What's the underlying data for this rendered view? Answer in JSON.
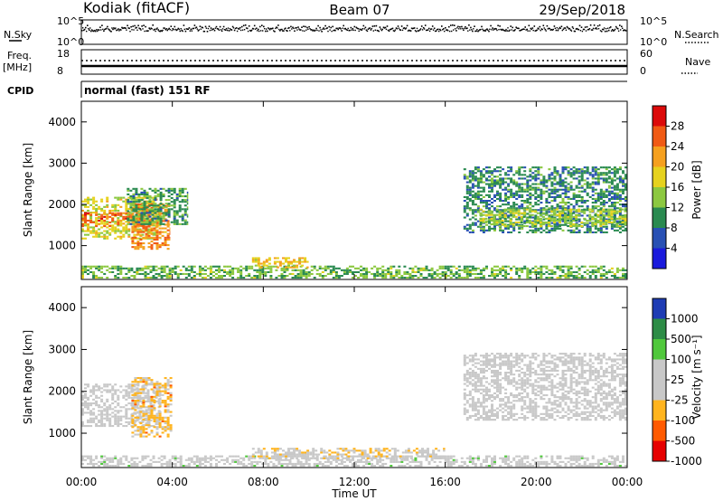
{
  "header": {
    "station": "Kodiak (fitACF)",
    "beam": "Beam 07",
    "date": "29/Sep/2018"
  },
  "top_panels": {
    "nsky": {
      "label": "N.Sky",
      "ticks": [
        "10^5",
        "10^0"
      ]
    },
    "nsearch": {
      "label": "N.Search",
      "ticks": [
        "10^5",
        "10^0"
      ]
    },
    "freq": {
      "label_line1": "Freq.",
      "label_line2": "[MHz]",
      "ticks": [
        "18",
        "8"
      ]
    },
    "nave": {
      "label": "Nave",
      "ticks": [
        "60",
        "0"
      ]
    },
    "cpid": {
      "label": "CPID",
      "mode_text": "normal (fast) 151 RF"
    }
  },
  "chart_data": [
    {
      "type": "heatmap",
      "title": "",
      "xlabel": "Time UT",
      "ylabel": "Slant Range [km]",
      "x_ticks": [
        "00:00",
        "04:00",
        "08:00",
        "12:00",
        "16:00",
        "20:00",
        "00:00"
      ],
      "xlim_hours": [
        0,
        24
      ],
      "y_ticks": [
        "4000",
        "3000",
        "2000",
        "1000"
      ],
      "ylim_km": [
        180,
        4500
      ],
      "colorbar": {
        "label": "Power [dB]",
        "ticks": [
          "28",
          "24",
          "20",
          "16",
          "12",
          "8",
          "4"
        ],
        "range": [
          0,
          30
        ]
      },
      "regions": [
        {
          "t": [
            0.0,
            3.5
          ],
          "r": [
            1150,
            2150
          ],
          "level": 16,
          "note": ""
        },
        {
          "t": [
            0.0,
            2.8
          ],
          "r": [
            1450,
            1800
          ],
          "level": 24,
          "note": ""
        },
        {
          "t": [
            2.2,
            3.9
          ],
          "r": [
            900,
            2000
          ],
          "level": 22,
          "note": ""
        },
        {
          "t": [
            2.0,
            4.7
          ],
          "r": [
            1500,
            2400
          ],
          "level": 10,
          "note": ""
        },
        {
          "t": [
            0.0,
            24.0
          ],
          "r": [
            200,
            500
          ],
          "level": 12,
          "note": ""
        },
        {
          "t": [
            7.5,
            10.0
          ],
          "r": [
            450,
            700
          ],
          "level": 18,
          "note": ""
        },
        {
          "t": [
            16.8,
            24.0
          ],
          "r": [
            1300,
            2900
          ],
          "level": 9,
          "note": ""
        },
        {
          "t": [
            17.5,
            24.0
          ],
          "r": [
            1450,
            1900
          ],
          "level": 14,
          "note": ""
        }
      ]
    },
    {
      "type": "heatmap",
      "title": "",
      "xlabel": "Time UT",
      "ylabel": "Slant Range [km]",
      "x_ticks": [
        "00:00",
        "04:00",
        "08:00",
        "12:00",
        "16:00",
        "20:00",
        "00:00"
      ],
      "xlim_hours": [
        0,
        24
      ],
      "y_ticks": [
        "4000",
        "3000",
        "2000",
        "1000"
      ],
      "ylim_km": [
        180,
        4500
      ],
      "colorbar": {
        "label": "Velocity [m s⁻¹]",
        "ticks": [
          "1000",
          "500",
          "100",
          "25",
          "-25",
          "-100",
          "-500",
          "-1000"
        ],
        "range": [
          -1000,
          1000
        ]
      },
      "regions": [
        {
          "t": [
            0.0,
            3.5
          ],
          "r": [
            1150,
            2150
          ],
          "level": 0,
          "note": ""
        },
        {
          "t": [
            2.2,
            4.0
          ],
          "r": [
            900,
            2300
          ],
          "level": -300,
          "note": ""
        },
        {
          "t": [
            0.0,
            24.0
          ],
          "r": [
            200,
            450
          ],
          "level": 60,
          "note": ""
        },
        {
          "t": [
            7.5,
            16.0
          ],
          "r": [
            380,
            650
          ],
          "level": -150,
          "note": ""
        },
        {
          "t": [
            16.8,
            24.0
          ],
          "r": [
            1300,
            2900
          ],
          "level": 0,
          "note": ""
        }
      ]
    }
  ],
  "colors": {
    "power_scale": [
      "#1a1adc",
      "#2850b4",
      "#2a8a50",
      "#8cc840",
      "#e6d21e",
      "#f5a01e",
      "#f05a14",
      "#dc0a0a"
    ],
    "velocity_scale": [
      "#e60000",
      "#ff5a00",
      "#ffb41e",
      "#c8c8c8",
      "#c8c8c8",
      "#50c83c",
      "#2d8c46",
      "#1e3cb4"
    ]
  }
}
